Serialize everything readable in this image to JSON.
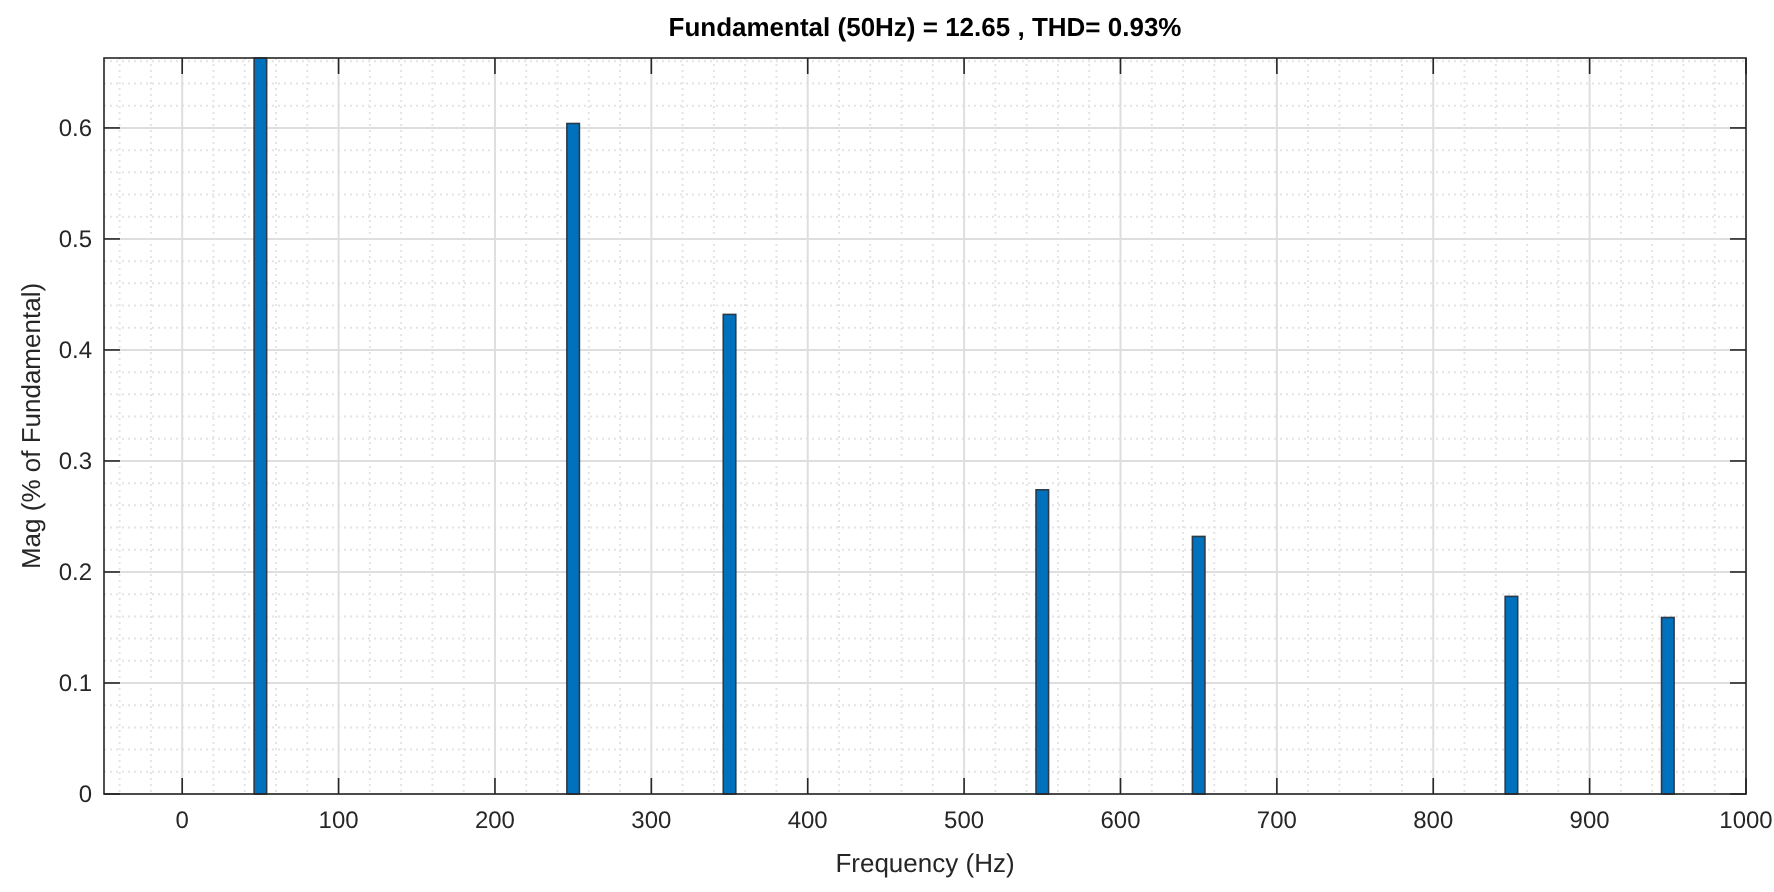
{
  "chart_data": {
    "type": "bar",
    "title": "Fundamental (50Hz) = 12.65 , THD= 0.93%",
    "xlabel": "Frequency (Hz)",
    "ylabel": "Mag (% of Fundamental)",
    "x": [
      0,
      10,
      20,
      30,
      40,
      50,
      60,
      70,
      80,
      90,
      100,
      110,
      120,
      130,
      140,
      150,
      160,
      170,
      180,
      190,
      200,
      210,
      220,
      230,
      240,
      250,
      260,
      270,
      280,
      290,
      300,
      310,
      320,
      330,
      340,
      350,
      360,
      370,
      380,
      390,
      400,
      410,
      420,
      430,
      440,
      450,
      460,
      470,
      480,
      490,
      500,
      510,
      520,
      530,
      540,
      550,
      560,
      570,
      580,
      590,
      600,
      610,
      620,
      630,
      640,
      650,
      660,
      670,
      680,
      690,
      700,
      710,
      720,
      730,
      740,
      750,
      760,
      770,
      780,
      790,
      800,
      810,
      820,
      830,
      840,
      850,
      860,
      870,
      880,
      890,
      900,
      910,
      920,
      930,
      940,
      950,
      960,
      970,
      980,
      990,
      1000
    ],
    "values": [
      0,
      0,
      0,
      0,
      0,
      0.663,
      0,
      0,
      0,
      0,
      0,
      0,
      0,
      0,
      0,
      0,
      0,
      0,
      0,
      0,
      0,
      0,
      0,
      0,
      0,
      0.604,
      0,
      0,
      0,
      0,
      0,
      0,
      0,
      0,
      0,
      0.432,
      0,
      0,
      0,
      0,
      0,
      0,
      0,
      0,
      0,
      0,
      0,
      0,
      0,
      0,
      0,
      0,
      0,
      0,
      0,
      0.274,
      0,
      0,
      0,
      0,
      0,
      0,
      0,
      0,
      0,
      0.232,
      0,
      0,
      0,
      0,
      0,
      0,
      0,
      0,
      0,
      0,
      0,
      0,
      0,
      0,
      0,
      0,
      0,
      0,
      0,
      0.178,
      0,
      0,
      0,
      0,
      0,
      0,
      0,
      0,
      0,
      0.159,
      0,
      0,
      0,
      0,
      0
    ],
    "color": "#0072bd",
    "xlim": [
      -50,
      1000
    ],
    "xticks": [
      0,
      100,
      200,
      300,
      400,
      500,
      600,
      700,
      800,
      900,
      1000
    ],
    "ylim": [
      0,
      0.663
    ],
    "yticks": [
      0,
      0.1,
      0.2,
      0.3,
      0.4,
      0.5,
      0.6
    ],
    "grid": true
  }
}
